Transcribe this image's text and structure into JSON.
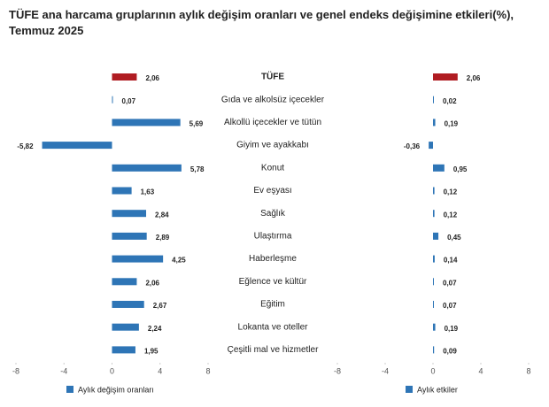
{
  "title": "TÜFE ana harcama gruplarının aylık değişim oranları ve genel endeks değişimine etkileri(%), Temmuz 2025",
  "chart_data": [
    {
      "type": "bar",
      "orientation": "horizontal",
      "categories": [
        "TÜFE",
        "Gıda ve alkolsüz içecekler",
        "Alkollü içecekler ve tütün",
        "Giyim ve ayakkabı",
        "Konut",
        "Ev eşyası",
        "Sağlık",
        "Ulaştırma",
        "Haberleşme",
        "Eğlence ve kültür",
        "Eğitim",
        "Lokanta ve oteller",
        "Çeşitli mal ve hizmetler"
      ],
      "series": [
        {
          "name": "Aylık değişim oranları",
          "color": "#2e75b6",
          "colors": [
            "#b01c22",
            "#2e75b6",
            "#2e75b6",
            "#2e75b6",
            "#2e75b6",
            "#2e75b6",
            "#2e75b6",
            "#2e75b6",
            "#2e75b6",
            "#2e75b6",
            "#2e75b6",
            "#2e75b6",
            "#2e75b6"
          ],
          "values": [
            2.06,
            0.07,
            5.69,
            -5.82,
            5.78,
            1.63,
            2.84,
            2.89,
            4.25,
            2.06,
            2.67,
            2.24,
            1.95
          ],
          "value_labels": [
            "2,06",
            "0,07",
            "5,69",
            "-5,82",
            "5,78",
            "1,63",
            "2,84",
            "2,89",
            "4,25",
            "2,06",
            "2,67",
            "2,24",
            "1,95"
          ]
        }
      ],
      "xlim": [
        -8,
        8
      ],
      "xticks": [
        -8,
        -4,
        0,
        4,
        8
      ],
      "grid": false
    },
    {
      "type": "bar",
      "orientation": "horizontal",
      "series": [
        {
          "name": "Aylık etkiler",
          "color": "#2e75b6",
          "colors": [
            "#b01c22",
            "#2e75b6",
            "#2e75b6",
            "#2e75b6",
            "#2e75b6",
            "#2e75b6",
            "#2e75b6",
            "#2e75b6",
            "#2e75b6",
            "#2e75b6",
            "#2e75b6",
            "#2e75b6",
            "#2e75b6"
          ],
          "values": [
            2.06,
            0.02,
            0.19,
            -0.36,
            0.95,
            0.12,
            0.12,
            0.45,
            0.14,
            0.07,
            0.07,
            0.19,
            0.09
          ],
          "value_labels": [
            "2,06",
            "0,02",
            "0,19",
            "-0,36",
            "0,95",
            "0,12",
            "0,12",
            "0,45",
            "0,14",
            "0,07",
            "0,07",
            "0,19",
            "0,09"
          ]
        }
      ],
      "xlim": [
        -8,
        8
      ],
      "xticks": [
        -8,
        -4,
        0,
        4,
        8
      ],
      "grid": false
    }
  ]
}
